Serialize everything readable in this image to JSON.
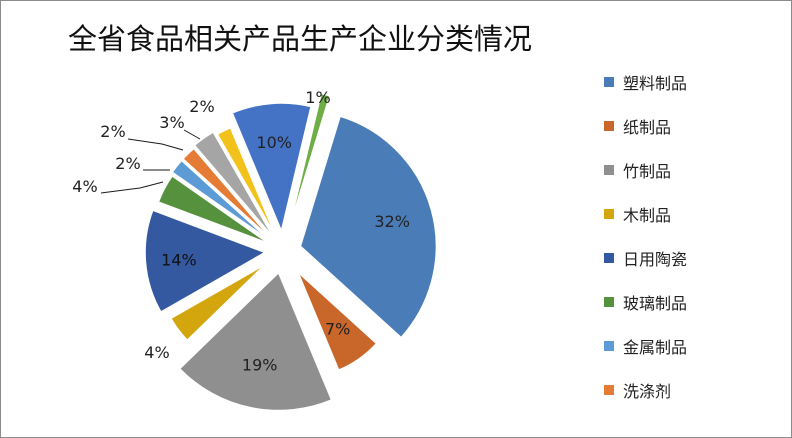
{
  "chart_data": {
    "type": "pie",
    "title": "全省食品相关产品生产企业分类情况",
    "legend_position": "right",
    "categories": [
      "塑料制品",
      "纸制品",
      "竹制品",
      "木制品",
      "日用陶瓷",
      "玻璃制品",
      "金属制品",
      "洗涤剂"
    ],
    "values": [
      32,
      7,
      19,
      4,
      14,
      4,
      2,
      2
    ],
    "value_labels": [
      "32%",
      "7%",
      "19%",
      "4%",
      "14%",
      "4%",
      "2%",
      "2%"
    ],
    "colors": [
      "#4a7db8",
      "#c9662a",
      "#8f8f8f",
      "#d4a60e",
      "#3459a1",
      "#56913d",
      "#5c9bd5",
      "#e47c36"
    ],
    "unlisted_slices": [
      {
        "value": 3,
        "label": "3%",
        "color": "#a5a5a5"
      },
      {
        "value": 2,
        "label": "2%",
        "color": "#f2c21a"
      },
      {
        "value": 10,
        "label": "10%",
        "color": "#4472c4"
      },
      {
        "value": 1,
        "label": "1%",
        "color": "#6fad47"
      }
    ]
  }
}
